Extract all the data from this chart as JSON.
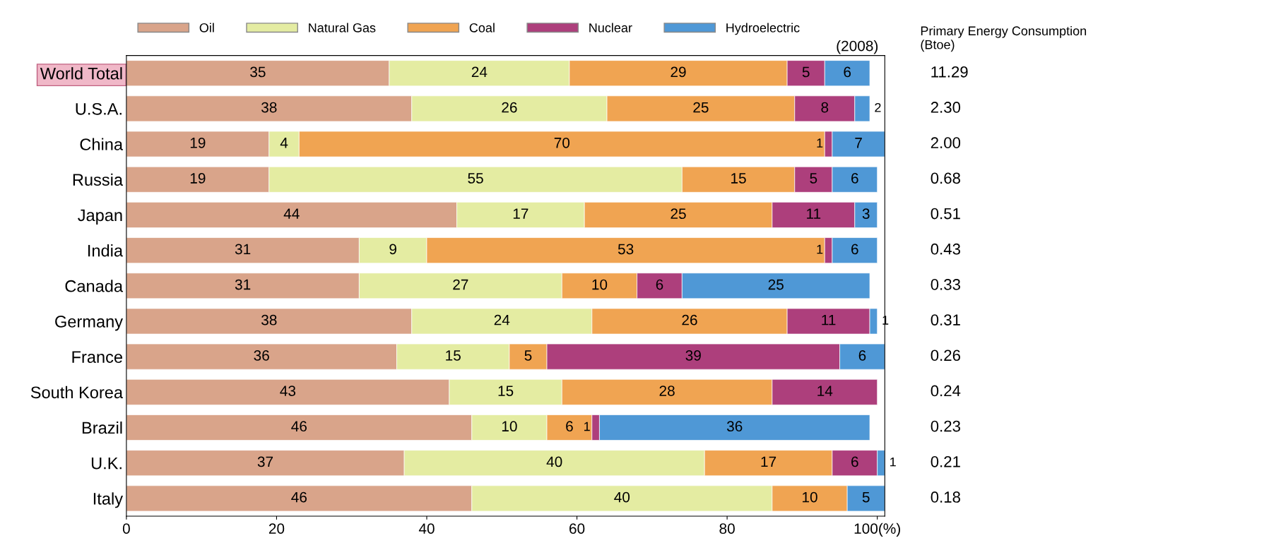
{
  "chart_data": {
    "type": "bar",
    "orientation": "horizontal",
    "stacked": true,
    "data_labels": true,
    "legend": "top",
    "grid": false,
    "categories": [
      "World Total",
      "U.S.A.",
      "China",
      "Russia",
      "Japan",
      "India",
      "Canada",
      "Germany",
      "France",
      "South Korea",
      "Brazil",
      "U.K.",
      "Italy"
    ],
    "series": [
      {
        "name": "Oil",
        "color": "#d9a48a",
        "values": [
          35,
          38,
          19,
          19,
          44,
          31,
          31,
          38,
          36,
          43,
          46,
          37,
          46
        ]
      },
      {
        "name": "Natural Gas",
        "color": "#e4eca2",
        "values": [
          24,
          26,
          4,
          55,
          17,
          9,
          27,
          24,
          15,
          15,
          10,
          40,
          40
        ]
      },
      {
        "name": "Coal",
        "color": "#f0a452",
        "values": [
          29,
          25,
          70,
          15,
          25,
          53,
          10,
          26,
          5,
          28,
          6,
          17,
          10
        ]
      },
      {
        "name": "Nuclear",
        "color": "#ad3f7c",
        "values": [
          5,
          8,
          1,
          5,
          11,
          1,
          6,
          11,
          39,
          14,
          1,
          6,
          null
        ]
      },
      {
        "name": "Hydroelectric",
        "color": "#4f98d6",
        "values": [
          6,
          2,
          7,
          6,
          3,
          6,
          25,
          1,
          6,
          null,
          36,
          1,
          5
        ]
      }
    ],
    "xlim": [
      0,
      101
    ],
    "xticks": [
      0,
      20,
      40,
      60,
      80,
      {
        "value": 100,
        "label": "100(%)"
      }
    ],
    "annotations": [
      "(2008)",
      "Primary Energy Consumption\n(Btoe)",
      "11.29",
      "2.30",
      "2.00",
      "0.68",
      "0.51",
      "0.43",
      "0.33",
      "0.31",
      "0.26",
      "0.24",
      "0.23",
      "0.21",
      "0.18"
    ]
  }
}
